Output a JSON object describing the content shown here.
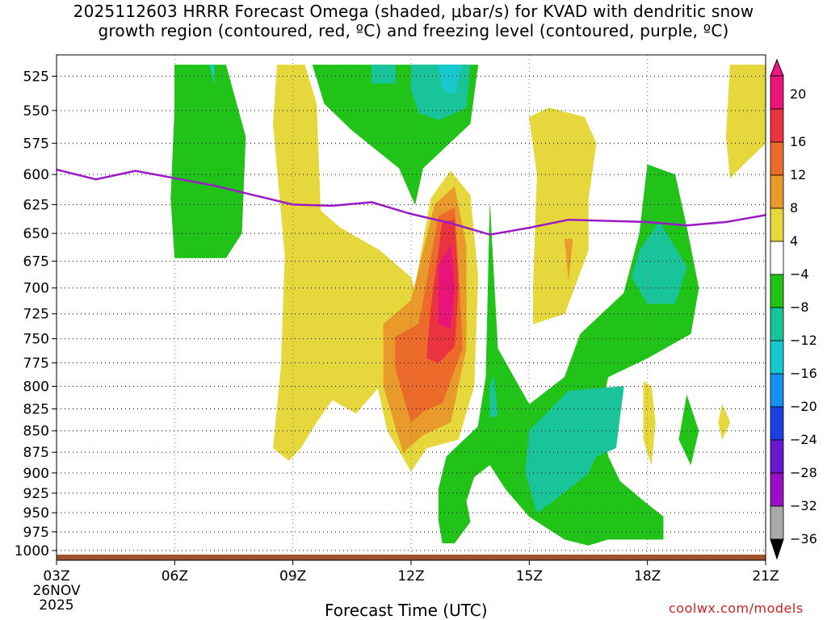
{
  "title_line1": "2025112603 HRRR Forecast Omega (shaded, μbar/s) for KVAD with dendritic snow",
  "title_line2": "growth region (contoured, red, ºC) and freezing level (contoured, purple, ºC)",
  "credit": "coolwx.com/models",
  "chart_data": {
    "type": "heatmap",
    "title": "2025112603 HRRR Forecast Omega (shaded, μbar/s) for KVAD with dendritic snow growth region (contoured, red, ºC) and freezing level (contoured, purple, ºC)",
    "xlabel": "Forecast Time (UTC)",
    "ylabel": "",
    "x_axis": {
      "range_hours": [
        3,
        21
      ],
      "ticks": [
        {
          "hour": 3,
          "label": "03Z",
          "sub1": "26NOV",
          "sub2": "2025"
        },
        {
          "hour": 6,
          "label": "06Z"
        },
        {
          "hour": 9,
          "label": "09Z"
        },
        {
          "hour": 12,
          "label": "12Z"
        },
        {
          "hour": 15,
          "label": "15Z"
        },
        {
          "hour": 18,
          "label": "18Z"
        },
        {
          "hour": 21,
          "label": "21Z"
        }
      ]
    },
    "y_axis": {
      "range_mb": [
        510,
        1010
      ],
      "scale": "log",
      "ticks": [
        525,
        550,
        575,
        600,
        625,
        650,
        675,
        700,
        725,
        750,
        775,
        800,
        825,
        850,
        875,
        900,
        925,
        950,
        975,
        1000
      ]
    },
    "grid": true,
    "colorbar": {
      "labels": [
        "20",
        "16",
        "12",
        "8",
        "4",
        "−4",
        "−8",
        "−12",
        "−16",
        "−20",
        "−24",
        "−28",
        "−32",
        "−36"
      ],
      "colors": [
        "#e8147a",
        "#ea3340",
        "#ec6a2a",
        "#e89a2a",
        "#e6d83c",
        "#ffffff",
        "#22c318",
        "#19c49a",
        "#17c9cc",
        "#1890ef",
        "#1b3fe0",
        "#6a18d0",
        "#9910c4",
        "#a8a8a8"
      ],
      "top_arrow_color": "#ee1580",
      "bottom_arrow_color": "#000000"
    },
    "freezing_level": {
      "color": "#9a1ac8",
      "points": [
        {
          "hour": 3,
          "mb": 596
        },
        {
          "hour": 4,
          "mb": 604
        },
        {
          "hour": 5,
          "mb": 597
        },
        {
          "hour": 6,
          "mb": 603
        },
        {
          "hour": 7,
          "mb": 609
        },
        {
          "hour": 8,
          "mb": 617
        },
        {
          "hour": 9,
          "mb": 625
        },
        {
          "hour": 10,
          "mb": 626
        },
        {
          "hour": 11,
          "mb": 623
        },
        {
          "hour": 12,
          "mb": 633
        },
        {
          "hour": 13,
          "mb": 641
        },
        {
          "hour": 14,
          "mb": 651
        },
        {
          "hour": 15,
          "mb": 645
        },
        {
          "hour": 16,
          "mb": 638
        },
        {
          "hour": 17,
          "mb": 639
        },
        {
          "hour": 18,
          "mb": 640
        },
        {
          "hour": 19,
          "mb": 643
        },
        {
          "hour": 20,
          "mb": 640
        },
        {
          "hour": 21,
          "mb": 634
        }
      ]
    },
    "terrain_color": "#a0522d",
    "omega_regions": [
      {
        "name": "green-band-06z",
        "value": -6,
        "color": "#22c318",
        "points": [
          [
            6,
            517
          ],
          [
            7.3,
            517
          ],
          [
            7.8,
            570
          ],
          [
            7.7,
            650
          ],
          [
            7.3,
            672
          ],
          [
            6,
            672
          ],
          [
            5.9,
            620
          ],
          [
            6,
            550
          ]
        ]
      },
      {
        "name": "yellow-band-west",
        "value": 6,
        "color": "#e6d83c",
        "points": [
          [
            8.6,
            517
          ],
          [
            9.3,
            517
          ],
          [
            9.6,
            545
          ],
          [
            9.7,
            630
          ],
          [
            10.2,
            645
          ],
          [
            11.2,
            665
          ],
          [
            12,
            690
          ],
          [
            12.2,
            720
          ],
          [
            11.9,
            760
          ],
          [
            11.2,
            800
          ],
          [
            10.6,
            830
          ],
          [
            10,
            815
          ],
          [
            9.6,
            840
          ],
          [
            9.2,
            870
          ],
          [
            8.9,
            885
          ],
          [
            8.5,
            870
          ],
          [
            8.7,
            780
          ],
          [
            8.8,
            670
          ],
          [
            8.5,
            560
          ]
        ]
      },
      {
        "name": "green-top-middle",
        "value": -6,
        "color": "#22c318",
        "points": [
          [
            9.5,
            517
          ],
          [
            13.7,
            517
          ],
          [
            13.5,
            560
          ],
          [
            12.3,
            595
          ],
          [
            12.1,
            625
          ],
          [
            11.7,
            595
          ],
          [
            10.5,
            565
          ],
          [
            9.8,
            545
          ]
        ]
      },
      {
        "name": "teal-top-left",
        "value": -10,
        "color": "#19c49a",
        "points": [
          [
            11,
            517
          ],
          [
            11.6,
            517
          ],
          [
            11.6,
            530
          ],
          [
            11,
            530
          ]
        ]
      },
      {
        "name": "teal-top-center",
        "value": -10,
        "color": "#19c49a",
        "points": [
          [
            12,
            517
          ],
          [
            13.5,
            517
          ],
          [
            13.4,
            548
          ],
          [
            12.7,
            557
          ],
          [
            12.2,
            552
          ],
          [
            12,
            535
          ]
        ]
      },
      {
        "name": "cyan-top",
        "value": -14,
        "color": "#17c9cc",
        "points": [
          [
            12.7,
            517
          ],
          [
            13.3,
            517
          ],
          [
            13.1,
            538
          ],
          [
            12.8,
            535
          ]
        ]
      },
      {
        "name": "yellow-central-tower",
        "value": 6,
        "color": "#e6d83c",
        "points": [
          [
            12,
            898
          ],
          [
            11.4,
            850
          ],
          [
            11.1,
            790
          ],
          [
            11.5,
            730
          ],
          [
            12.1,
            700
          ],
          [
            12.5,
            620
          ],
          [
            13,
            597
          ],
          [
            13.5,
            617
          ],
          [
            13.7,
            690
          ],
          [
            13.6,
            800
          ],
          [
            13.2,
            860
          ],
          [
            12.4,
            870
          ]
        ]
      },
      {
        "name": "orange-light-core",
        "value": 10,
        "color": "#e89a2a",
        "points": [
          [
            11.8,
            875
          ],
          [
            11.3,
            800
          ],
          [
            11.3,
            735
          ],
          [
            12,
            712
          ],
          [
            12.6,
            625
          ],
          [
            13.1,
            610
          ],
          [
            13.4,
            660
          ],
          [
            13.4,
            760
          ],
          [
            13,
            840
          ],
          [
            12.3,
            855
          ]
        ]
      },
      {
        "name": "orange-core",
        "value": 14,
        "color": "#ec6a2a",
        "points": [
          [
            12,
            840
          ],
          [
            11.6,
            780
          ],
          [
            11.6,
            748
          ],
          [
            12.2,
            735
          ],
          [
            12.7,
            635
          ],
          [
            13.1,
            628
          ],
          [
            13.2,
            680
          ],
          [
            13.3,
            760
          ],
          [
            12.8,
            818
          ],
          [
            12.3,
            828
          ]
        ]
      },
      {
        "name": "red-core",
        "value": 18,
        "color": "#ea3340",
        "points": [
          [
            12.4,
            770
          ],
          [
            12.5,
            720
          ],
          [
            12.8,
            640
          ],
          [
            13.1,
            638
          ],
          [
            13.2,
            700
          ],
          [
            13.1,
            758
          ],
          [
            12.7,
            775
          ]
        ]
      },
      {
        "name": "magenta-core",
        "value": 20,
        "color": "#e8147a",
        "points": [
          [
            12.7,
            735
          ],
          [
            12.7,
            680
          ],
          [
            13,
            660
          ],
          [
            13.1,
            700
          ],
          [
            13,
            740
          ]
        ]
      },
      {
        "name": "green-spike-lower",
        "value": -6,
        "color": "#22c318",
        "points": [
          [
            14,
            626
          ],
          [
            14.2,
            760
          ],
          [
            15,
            820
          ],
          [
            15.9,
            790
          ],
          [
            16.3,
            745
          ],
          [
            17.4,
            705
          ],
          [
            17.8,
            650
          ],
          [
            18,
            592
          ],
          [
            18.7,
            600
          ],
          [
            19,
            645
          ],
          [
            19.3,
            700
          ],
          [
            19.1,
            745
          ],
          [
            18,
            770
          ],
          [
            17,
            790
          ],
          [
            16.8,
            830
          ],
          [
            17,
            880
          ],
          [
            17.3,
            910
          ],
          [
            17.9,
            935
          ],
          [
            18.4,
            955
          ],
          [
            18.4,
            985
          ],
          [
            17.5,
            985
          ],
          [
            17,
            985
          ],
          [
            16.5,
            993
          ],
          [
            15.9,
            985
          ],
          [
            15,
            955
          ],
          [
            14.4,
            920
          ],
          [
            14,
            890
          ],
          [
            13.6,
            905
          ],
          [
            13.4,
            935
          ],
          [
            13.5,
            962
          ],
          [
            13.1,
            990
          ],
          [
            12.8,
            990
          ],
          [
            12.7,
            960
          ],
          [
            12.7,
            920
          ],
          [
            12.9,
            880
          ],
          [
            13.7,
            845
          ],
          [
            13.9,
            790
          ]
        ]
      },
      {
        "name": "teal-lower",
        "value": -10,
        "color": "#19c49a",
        "points": [
          [
            15,
            850
          ],
          [
            16,
            805
          ],
          [
            17.4,
            800
          ],
          [
            17.2,
            870
          ],
          [
            16.7,
            880
          ],
          [
            16.5,
            900
          ],
          [
            16,
            920
          ],
          [
            15.2,
            950
          ],
          [
            14.9,
            900
          ]
        ]
      },
      {
        "name": "teal-right",
        "value": -10,
        "color": "#19c49a",
        "points": [
          [
            17.8,
            665
          ],
          [
            18.3,
            640
          ],
          [
            19,
            680
          ],
          [
            18.7,
            715
          ],
          [
            18,
            715
          ],
          [
            17.6,
            690
          ]
        ]
      },
      {
        "name": "teal-spike",
        "value": -10,
        "color": "#19c49a",
        "points": [
          [
            14,
            800
          ],
          [
            14.1,
            790
          ],
          [
            14.2,
            832
          ],
          [
            14,
            835
          ]
        ]
      },
      {
        "name": "yellow-right-upper",
        "value": 6,
        "color": "#e6d83c",
        "points": [
          [
            15,
            555
          ],
          [
            15.5,
            548
          ],
          [
            16.4,
            555
          ],
          [
            16.7,
            575
          ],
          [
            16.5,
            620
          ],
          [
            16.5,
            665
          ],
          [
            15.9,
            725
          ],
          [
            15.1,
            735
          ],
          [
            15.1,
            700
          ],
          [
            15.2,
            600
          ]
        ]
      },
      {
        "name": "orange-sliver",
        "value": 10,
        "color": "#e89a2a",
        "points": [
          [
            15.9,
            655
          ],
          [
            16,
            692
          ],
          [
            16.1,
            655
          ]
        ]
      },
      {
        "name": "yellow-top-right",
        "value": 6,
        "color": "#e6d83c",
        "points": [
          [
            20.1,
            517
          ],
          [
            21,
            517
          ],
          [
            21,
            575
          ],
          [
            20.5,
            590
          ],
          [
            20.1,
            603
          ],
          [
            20,
            570
          ]
        ]
      },
      {
        "name": "yellow-blob-18z",
        "value": 6,
        "color": "#e6d83c",
        "points": [
          [
            17.9,
            795
          ],
          [
            18.1,
            800
          ],
          [
            18.2,
            840
          ],
          [
            18.1,
            890
          ],
          [
            17.9,
            860
          ]
        ]
      },
      {
        "name": "yellow-blob-20z",
        "value": 6,
        "color": "#e6d83c",
        "points": [
          [
            19.9,
            820
          ],
          [
            20.1,
            840
          ],
          [
            19.9,
            860
          ],
          [
            19.8,
            840
          ]
        ]
      },
      {
        "name": "green-blob-19z",
        "value": -6,
        "color": "#22c318",
        "points": [
          [
            19,
            810
          ],
          [
            19.3,
            850
          ],
          [
            19.1,
            890
          ],
          [
            18.8,
            860
          ]
        ]
      },
      {
        "name": "blue-dot-top-left",
        "value": -14,
        "color": "#17c9cc",
        "points": [
          [
            6.9,
            517
          ],
          [
            7,
            517
          ],
          [
            7,
            530
          ]
        ]
      }
    ]
  }
}
